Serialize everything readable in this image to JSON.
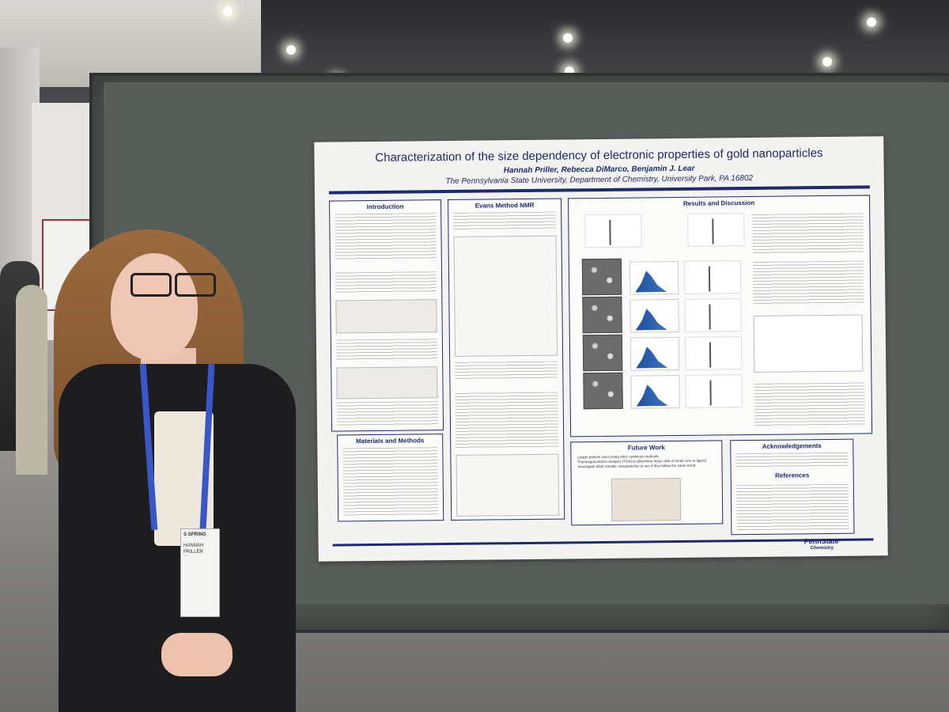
{
  "poster": {
    "title": "Characterization of the size dependency of electronic properties of gold nanoparticles",
    "authors": "Hannah Priller, Rebecca DiMarco, Benjamin J. Lear",
    "affiliation": "The Pennsylvania State University, Department of Chemistry, University Park, PA 16802",
    "sections": {
      "introduction": "Introduction",
      "evans": "Evans Method NMR",
      "results": "Results and Discussion",
      "materials": "Materials and Methods",
      "future": "Future Work",
      "acknowledgements": "Acknowledgements",
      "references": "References"
    },
    "future_items": [
      "Larger particle sizes using other synthesis methods",
      "Thermogravimetric analysis (TGA) to determine mass ratio of metal core to ligand",
      "Investigate other metallic nanoparticles to see if they follow the same trend"
    ],
    "logo": {
      "name": "PennState",
      "sub": "Chemistry"
    }
  },
  "badge": {
    "event": "S SPRING",
    "name": "HANNAH",
    "surname": "PRILLER"
  },
  "colors": {
    "poster_navy": "#1f2a6b",
    "board": "#4c524e",
    "lanyard": "#3a57c7"
  }
}
